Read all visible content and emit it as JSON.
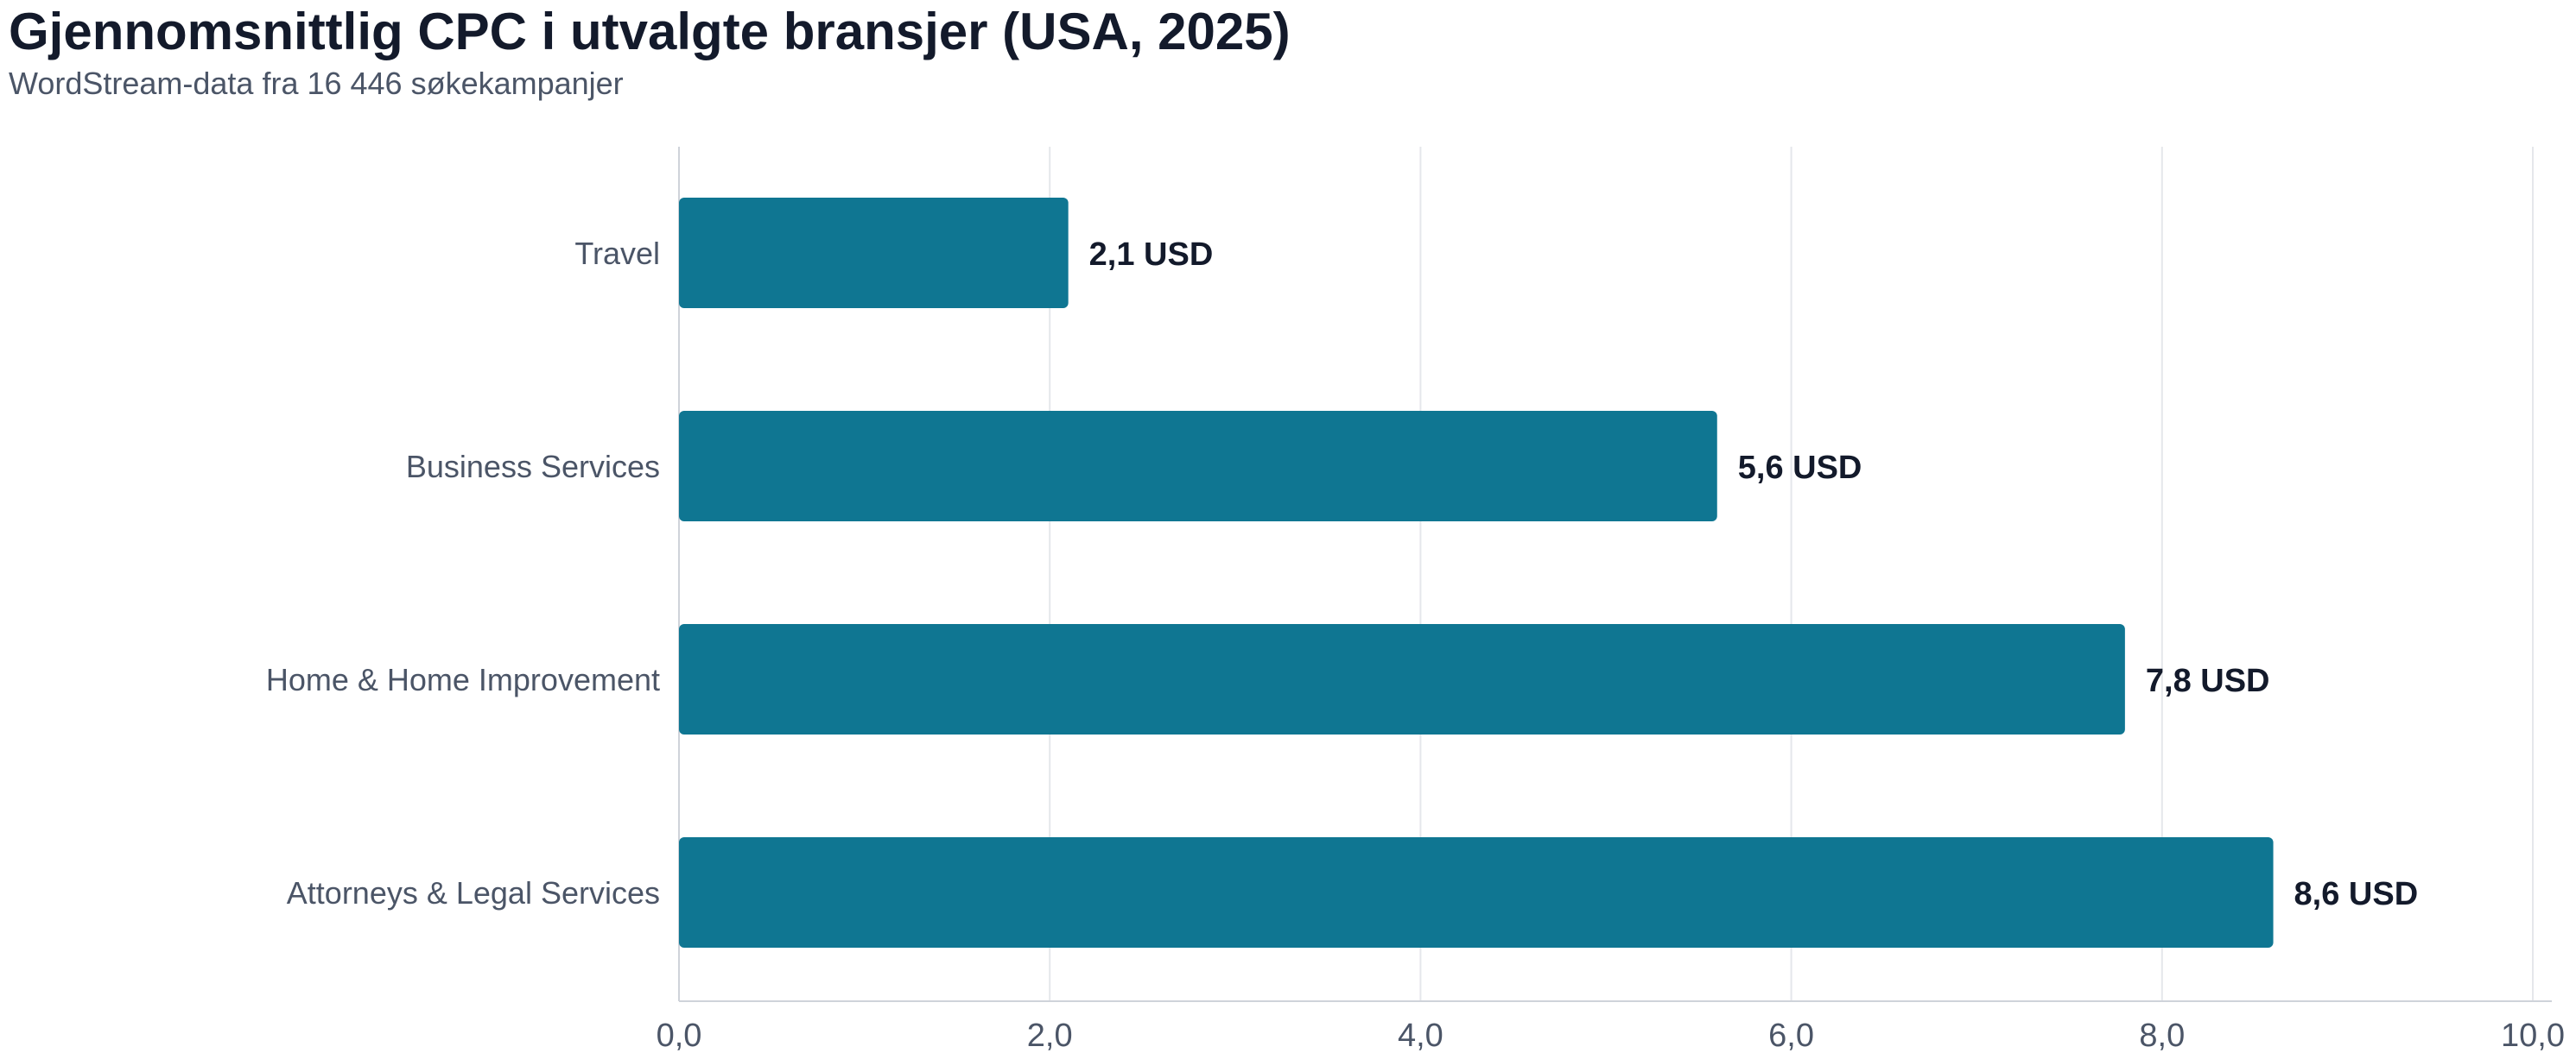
{
  "chart_data": {
    "type": "bar",
    "orientation": "horizontal",
    "title": "Gjennomsnittlig CPC i utvalgte bransjer (USA, 2025)",
    "subtitle": "WordStream-data fra 16 446 søkekampanjer",
    "categories": [
      "Travel",
      "Business Services",
      "Home & Home Improvement",
      "Attorneys & Legal Services"
    ],
    "values": [
      2.1,
      5.6,
      7.8,
      8.6
    ],
    "value_labels": [
      "2,1 USD",
      "5,6 USD",
      "7,8 USD",
      "8,6 USD"
    ],
    "xlim": [
      0,
      10
    ],
    "x_ticks": [
      0,
      2,
      4,
      6,
      8,
      10
    ],
    "x_tick_labels": [
      "0,0",
      "2,0",
      "4,0",
      "6,0",
      "8,0",
      "10,0"
    ],
    "xlabel": "",
    "ylabel": "",
    "grid": true,
    "legend": "none",
    "colors": {
      "bar": "#0f7692",
      "title": "#131a2b",
      "subtitle": "#4b5567",
      "gridline": "#e5e7eb"
    }
  }
}
